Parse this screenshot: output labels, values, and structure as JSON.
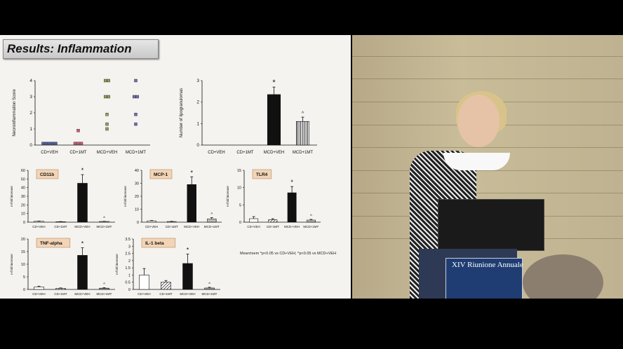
{
  "slide": {
    "title": "Results: Inflammation",
    "footnote": "Mean±sem *p<0.05 vs CD+VEH;  ^p<0.05 vs MCD+VEH"
  },
  "colors": {
    "slide_bg": "#f4f3ef",
    "bar_dark": "#111111",
    "label_box": "#f3d4b5"
  },
  "chart_data": [
    {
      "id": "necroinflammation",
      "type": "scatter",
      "categories": [
        "CD+VEH",
        "CD+1MT",
        "MCD+VEH",
        "MCD+1MT"
      ],
      "ylabel": "Necroinflammation Score",
      "ylim": [
        0,
        4
      ],
      "yticks": [
        "0",
        "1",
        "2",
        "3",
        "4"
      ],
      "points": [
        {
          "cat": 0,
          "y": 0.1,
          "color": "#4b5fa0"
        },
        {
          "cat": 0,
          "y": 0.1,
          "color": "#4b5fa0"
        },
        {
          "cat": 0,
          "y": 0.1,
          "color": "#4b5fa0"
        },
        {
          "cat": 0,
          "y": 0.1,
          "color": "#4b5fa0"
        },
        {
          "cat": 0,
          "y": 0.1,
          "color": "#4b5fa0"
        },
        {
          "cat": 1,
          "y": 0.1,
          "color": "#c85a7a"
        },
        {
          "cat": 1,
          "y": 0.9,
          "color": "#c85a7a"
        },
        {
          "cat": 1,
          "y": 0.1,
          "color": "#c85a7a"
        },
        {
          "cat": 1,
          "y": 0.1,
          "color": "#c85a7a"
        },
        {
          "cat": 2,
          "y": 4.0,
          "color": "#8fa25a"
        },
        {
          "cat": 2,
          "y": 4.0,
          "color": "#8fa25a"
        },
        {
          "cat": 2,
          "y": 3.0,
          "color": "#8fa25a"
        },
        {
          "cat": 2,
          "y": 3.0,
          "color": "#8fa25a"
        },
        {
          "cat": 2,
          "y": 1.9,
          "color": "#8fa25a"
        },
        {
          "cat": 2,
          "y": 1.3,
          "color": "#8fa25a"
        },
        {
          "cat": 2,
          "y": 1.0,
          "color": "#8fa25a"
        },
        {
          "cat": 3,
          "y": 4.0,
          "color": "#7a6bb0"
        },
        {
          "cat": 3,
          "y": 3.0,
          "color": "#7a6bb0"
        },
        {
          "cat": 3,
          "y": 3.0,
          "color": "#7a6bb0"
        },
        {
          "cat": 3,
          "y": 1.9,
          "color": "#7a6bb0"
        },
        {
          "cat": 3,
          "y": 1.3,
          "color": "#7a6bb0"
        }
      ]
    },
    {
      "id": "lipogranulomas",
      "type": "bar",
      "categories": [
        "CD+VEH",
        "CD+1MT",
        "MCD+VEH",
        "MCD+1MT"
      ],
      "ylabel": "Number of lipogranulomas",
      "ylim": [
        0,
        3
      ],
      "yticks": [
        "0",
        "1",
        "2",
        "3"
      ],
      "values": [
        0,
        0,
        2.35,
        1.1
      ],
      "errors": [
        0,
        0,
        0.35,
        0.2
      ],
      "fills": [
        "white",
        "white",
        "dark",
        "striped"
      ],
      "marks": [
        "",
        "",
        "*",
        "^"
      ]
    },
    {
      "id": "cd11b",
      "type": "bar",
      "label": "CD11b",
      "categories": [
        "CD+VEH",
        "CD+1MT",
        "MCD+VEH",
        "MCD+1MT"
      ],
      "ylabel": "n-fold increase",
      "ylim": [
        0,
        60
      ],
      "yticks": [
        "0",
        "10",
        "20",
        "30",
        "40",
        "50",
        "60"
      ],
      "values": [
        1,
        0.5,
        45,
        0.8
      ],
      "errors": [
        0.3,
        0.2,
        10,
        0.2
      ],
      "fills": [
        "white",
        "hatch",
        "dark",
        "dots"
      ],
      "marks": [
        "",
        "",
        "*",
        "^"
      ]
    },
    {
      "id": "mcp1",
      "type": "bar",
      "label": "MCP-1",
      "categories": [
        "CD+VEH",
        "CD+1MT",
        "MCD+VEH",
        "MCD+1MT"
      ],
      "ylabel": "n-fold increase",
      "ylim": [
        0,
        40
      ],
      "yticks": [
        "0",
        "10",
        "20",
        "30",
        "40"
      ],
      "values": [
        1,
        0.5,
        29,
        2.5
      ],
      "errors": [
        0.3,
        0.2,
        6,
        1
      ],
      "fills": [
        "white",
        "hatch",
        "dark",
        "dots"
      ],
      "marks": [
        "",
        "",
        "*",
        "^"
      ]
    },
    {
      "id": "tlr4",
      "type": "bar",
      "label": "TLR4",
      "categories": [
        "CD+VEH",
        "CD+1MT",
        "MCD+VEH",
        "MCD+1MT"
      ],
      "ylabel": "n-fold increase",
      "ylim": [
        0,
        15
      ],
      "yticks": [
        "0",
        "5",
        "10",
        "15"
      ],
      "values": [
        1,
        0.7,
        8.5,
        0.6
      ],
      "errors": [
        0.6,
        0.3,
        1.8,
        0.2
      ],
      "fills": [
        "white",
        "hatch",
        "dark",
        "dots"
      ],
      "marks": [
        "",
        "",
        "*",
        "^"
      ]
    },
    {
      "id": "tnfalpha",
      "type": "bar",
      "label": "TNF-alpha",
      "categories": [
        "CD+VEH",
        "CD+1MT",
        "MCD+VEH",
        "MCD+1MT"
      ],
      "ylabel": "n-fold increase",
      "ylim": [
        0,
        20
      ],
      "yticks": [
        "0",
        "5",
        "10",
        "15",
        "20"
      ],
      "values": [
        1,
        0.4,
        13.5,
        0.5
      ],
      "errors": [
        0.3,
        0.2,
        3,
        0.2
      ],
      "fills": [
        "white",
        "hatch",
        "dark",
        "dots"
      ],
      "marks": [
        "",
        "",
        "*",
        "^"
      ]
    },
    {
      "id": "il1beta",
      "type": "bar",
      "label": "IL-1 beta",
      "categories": [
        "CD+VEH",
        "CD+1MT",
        "MCD+VEH",
        "MCD+1MT"
      ],
      "ylabel": "n-fold increase",
      "ylim": [
        0,
        3.5
      ],
      "yticks": [
        "0",
        "0.5",
        "1",
        "1.5",
        "2",
        "2.5",
        "3",
        "3.5"
      ],
      "values": [
        1,
        0.5,
        1.8,
        0.1
      ],
      "errors": [
        0.45,
        0.12,
        0.65,
        0.05
      ],
      "fills": [
        "white",
        "hatch",
        "dark",
        "dots"
      ],
      "marks": [
        "",
        "",
        "*",
        "^"
      ]
    }
  ],
  "video": {
    "banner_text": "XIV Riunione Annuale"
  }
}
